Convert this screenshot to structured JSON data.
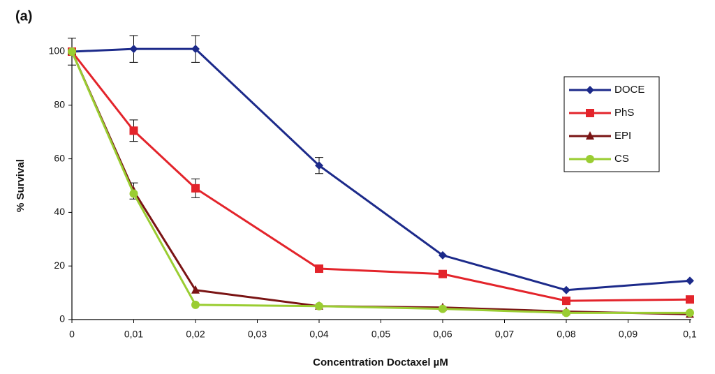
{
  "chart_data": {
    "type": "line",
    "title": "(a)",
    "x_label": "Concentration Doctaxel µM",
    "y_label": "% Survival",
    "x": [
      0,
      0.01,
      0.02,
      0.04,
      0.06,
      0.08,
      0.1
    ],
    "xlim": [
      0,
      0.1
    ],
    "xticks": [
      0,
      {
        "value": 0.01,
        "label": "0,01"
      },
      {
        "value": 0.02,
        "label": "0,02"
      },
      {
        "value": 0.03,
        "label": "0,03"
      },
      {
        "value": 0.04,
        "label": "0,04"
      },
      {
        "value": 0.05,
        "label": "0,05"
      },
      {
        "value": 0.06,
        "label": "0,06"
      },
      {
        "value": 0.07,
        "label": "0,07"
      },
      {
        "value": 0.08,
        "label": "0,08"
      },
      {
        "value": 0.09,
        "label": "0,09"
      },
      {
        "value": 0.1,
        "label": "0,1"
      }
    ],
    "ylim": [
      0,
      100
    ],
    "yticks": [
      0,
      20,
      40,
      60,
      80,
      100
    ],
    "grid": false,
    "legend": "upper right",
    "series": [
      {
        "name": "DOCE",
        "color": "#1c2a8a",
        "marker": "diamond",
        "values": [
          100,
          101,
          101,
          57.5,
          24,
          11,
          14.5
        ],
        "errors": [
          5,
          5,
          5,
          3,
          null,
          null,
          null
        ]
      },
      {
        "name": "PhS",
        "color": "#e3242b",
        "marker": "square",
        "values": [
          100,
          70.5,
          49,
          19,
          17,
          7,
          7.5
        ],
        "errors": [
          null,
          4,
          3.5,
          null,
          null,
          null,
          null
        ]
      },
      {
        "name": "EPI",
        "color": "#7a1414",
        "marker": "triangle",
        "values": [
          100,
          48,
          11,
          5,
          4.5,
          3,
          2
        ],
        "errors": [
          null,
          3,
          null,
          null,
          null,
          null,
          null
        ]
      },
      {
        "name": "CS",
        "color": "#9acd32",
        "marker": "circle",
        "values": [
          100,
          47,
          5.5,
          5,
          4,
          2.5,
          2.5
        ],
        "errors": [
          null,
          null,
          null,
          null,
          null,
          null,
          null
        ]
      }
    ]
  }
}
